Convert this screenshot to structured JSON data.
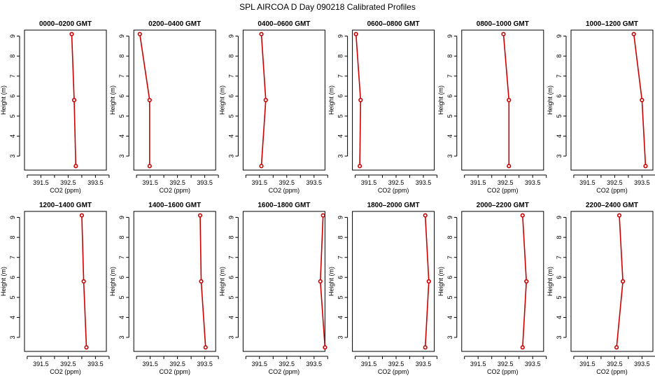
{
  "title": "SPL AIRCOA D  Day 090218  Calibrated Profiles",
  "chart_data": [
    {
      "type": "line",
      "title": "0000–0200 GMT",
      "xlabel": "CO2 (ppm)",
      "ylabel": "Height (m)",
      "xlim": [
        390.9,
        393.9
      ],
      "ylim": [
        2.3,
        9.3
      ],
      "x_ticks": [
        391.0,
        391.5,
        392.0,
        392.5,
        393.0,
        393.5,
        394.0
      ],
      "x_tick_labels": [
        "",
        "391.5",
        "",
        "392.5",
        "",
        "393.5",
        ""
      ],
      "y_ticks": [
        3,
        4,
        5,
        6,
        7,
        8,
        9
      ],
      "series": [
        {
          "x": [
            392.63,
            392.72,
            392.78
          ],
          "y": [
            9.1,
            5.8,
            2.5
          ]
        }
      ]
    },
    {
      "type": "line",
      "title": "0200–0400 GMT",
      "xlabel": "CO2 (ppm)",
      "ylabel": "Height (m)",
      "xlim": [
        390.9,
        393.9
      ],
      "ylim": [
        2.3,
        9.3
      ],
      "x_ticks": [
        391.0,
        391.5,
        392.0,
        392.5,
        393.0,
        393.5,
        394.0
      ],
      "x_tick_labels": [
        "",
        "391.5",
        "",
        "392.5",
        "",
        "393.5",
        ""
      ],
      "y_ticks": [
        3,
        4,
        5,
        6,
        7,
        8,
        9
      ],
      "series": [
        {
          "x": [
            391.12,
            391.48,
            391.48
          ],
          "y": [
            9.1,
            5.8,
            2.5
          ]
        }
      ]
    },
    {
      "type": "line",
      "title": "0400–0600 GMT",
      "xlabel": "CO2 (ppm)",
      "ylabel": "Height (m)",
      "xlim": [
        390.9,
        393.9
      ],
      "ylim": [
        2.3,
        9.3
      ],
      "x_ticks": [
        391.0,
        391.5,
        392.0,
        392.5,
        393.0,
        393.5,
        394.0
      ],
      "x_tick_labels": [
        "",
        "391.5",
        "",
        "392.5",
        "",
        "393.5",
        ""
      ],
      "y_ticks": [
        3,
        4,
        5,
        6,
        7,
        8,
        9
      ],
      "series": [
        {
          "x": [
            391.57,
            391.73,
            391.57
          ],
          "y": [
            9.1,
            5.8,
            2.5
          ]
        }
      ]
    },
    {
      "type": "line",
      "title": "0600–0800 GMT",
      "xlabel": "CO2 (ppm)",
      "ylabel": "Height (m)",
      "xlim": [
        390.9,
        393.9
      ],
      "ylim": [
        2.3,
        9.3
      ],
      "x_ticks": [
        391.0,
        391.5,
        392.0,
        392.5,
        393.0,
        393.5,
        394.0
      ],
      "x_tick_labels": [
        "",
        "391.5",
        "",
        "392.5",
        "",
        "393.5",
        ""
      ],
      "y_ticks": [
        3,
        4,
        5,
        6,
        7,
        8,
        9
      ],
      "series": [
        {
          "x": [
            391.03,
            391.2,
            391.17
          ],
          "y": [
            9.1,
            5.8,
            2.5
          ]
        }
      ]
    },
    {
      "type": "line",
      "title": "0800–1000 GMT",
      "xlabel": "CO2 (ppm)",
      "ylabel": "Height (m)",
      "xlim": [
        390.9,
        393.9
      ],
      "ylim": [
        2.3,
        9.3
      ],
      "x_ticks": [
        391.0,
        391.5,
        392.0,
        392.5,
        393.0,
        393.5,
        394.0
      ],
      "x_tick_labels": [
        "",
        "391.5",
        "",
        "392.5",
        "",
        "393.5",
        ""
      ],
      "y_ticks": [
        3,
        4,
        5,
        6,
        7,
        8,
        9
      ],
      "series": [
        {
          "x": [
            392.43,
            392.63,
            392.63
          ],
          "y": [
            9.1,
            5.8,
            2.5
          ]
        }
      ]
    },
    {
      "type": "line",
      "title": "1000–1200 GMT",
      "xlabel": "CO2 (ppm)",
      "ylabel": "Height (m)",
      "xlim": [
        390.9,
        393.9
      ],
      "ylim": [
        2.3,
        9.3
      ],
      "x_ticks": [
        391.0,
        391.5,
        392.0,
        392.5,
        393.0,
        393.5,
        394.0
      ],
      "x_tick_labels": [
        "",
        "391.5",
        "",
        "392.5",
        "",
        "393.5",
        ""
      ],
      "y_ticks": [
        3,
        4,
        5,
        6,
        7,
        8,
        9
      ],
      "series": [
        {
          "x": [
            393.2,
            393.5,
            393.63
          ],
          "y": [
            9.1,
            5.8,
            2.5
          ]
        }
      ]
    },
    {
      "type": "line",
      "title": "1200–1400 GMT",
      "xlabel": "CO2 (ppm)",
      "ylabel": "Height (m)",
      "xlim": [
        390.9,
        393.9
      ],
      "ylim": [
        2.3,
        9.3
      ],
      "x_ticks": [
        391.0,
        391.5,
        392.0,
        392.5,
        393.0,
        393.5,
        394.0
      ],
      "x_tick_labels": [
        "",
        "391.5",
        "",
        "392.5",
        "",
        "393.5",
        ""
      ],
      "y_ticks": [
        3,
        4,
        5,
        6,
        7,
        8,
        9
      ],
      "series": [
        {
          "x": [
            393.0,
            393.07,
            393.17
          ],
          "y": [
            9.1,
            5.8,
            2.5
          ]
        }
      ]
    },
    {
      "type": "line",
      "title": "1400–1600 GMT",
      "xlabel": "CO2 (ppm)",
      "ylabel": "Height (m)",
      "xlim": [
        390.9,
        393.9
      ],
      "ylim": [
        2.3,
        9.3
      ],
      "x_ticks": [
        391.0,
        391.5,
        392.0,
        392.5,
        393.0,
        393.5,
        394.0
      ],
      "x_tick_labels": [
        "",
        "391.5",
        "",
        "392.5",
        "",
        "393.5",
        ""
      ],
      "y_ticks": [
        3,
        4,
        5,
        6,
        7,
        8,
        9
      ],
      "series": [
        {
          "x": [
            393.33,
            393.37,
            393.53
          ],
          "y": [
            9.1,
            5.8,
            2.5
          ]
        }
      ]
    },
    {
      "type": "line",
      "title": "1600–1800 GMT",
      "xlabel": "CO2 (ppm)",
      "ylabel": "Height (m)",
      "xlim": [
        390.9,
        393.9
      ],
      "ylim": [
        2.3,
        9.3
      ],
      "x_ticks": [
        391.0,
        391.5,
        392.0,
        392.5,
        393.0,
        393.5,
        394.0
      ],
      "x_tick_labels": [
        "",
        "391.5",
        "",
        "392.5",
        "",
        "393.5",
        ""
      ],
      "y_ticks": [
        3,
        4,
        5,
        6,
        7,
        8,
        9
      ],
      "series": [
        {
          "x": [
            393.83,
            393.73,
            393.9
          ],
          "y": [
            9.1,
            5.8,
            2.5
          ]
        }
      ]
    },
    {
      "type": "line",
      "title": "1800–2000 GMT",
      "xlabel": "CO2 (ppm)",
      "ylabel": "Height (m)",
      "xlim": [
        390.9,
        393.9
      ],
      "ylim": [
        2.3,
        9.3
      ],
      "x_ticks": [
        391.0,
        391.5,
        392.0,
        392.5,
        393.0,
        393.5,
        394.0
      ],
      "x_tick_labels": [
        "",
        "391.5",
        "",
        "392.5",
        "",
        "393.5",
        ""
      ],
      "y_ticks": [
        3,
        4,
        5,
        6,
        7,
        8,
        9
      ],
      "series": [
        {
          "x": [
            393.57,
            393.7,
            393.57
          ],
          "y": [
            9.1,
            5.8,
            2.5
          ]
        }
      ]
    },
    {
      "type": "line",
      "title": "2000–2200 GMT",
      "xlabel": "CO2 (ppm)",
      "ylabel": "Height (m)",
      "xlim": [
        390.9,
        393.9
      ],
      "ylim": [
        2.3,
        9.3
      ],
      "x_ticks": [
        391.0,
        391.5,
        392.0,
        392.5,
        393.0,
        393.5,
        394.0
      ],
      "x_tick_labels": [
        "",
        "391.5",
        "",
        "392.5",
        "",
        "393.5",
        ""
      ],
      "y_ticks": [
        3,
        4,
        5,
        6,
        7,
        8,
        9
      ],
      "series": [
        {
          "x": [
            393.13,
            393.27,
            393.13
          ],
          "y": [
            9.1,
            5.8,
            2.5
          ]
        }
      ]
    },
    {
      "type": "line",
      "title": "2200–2400 GMT",
      "xlabel": "CO2 (ppm)",
      "ylabel": "Height (m)",
      "xlim": [
        390.9,
        393.9
      ],
      "ylim": [
        2.3,
        9.3
      ],
      "x_ticks": [
        391.0,
        391.5,
        392.0,
        392.5,
        393.0,
        393.5,
        394.0
      ],
      "x_tick_labels": [
        "",
        "391.5",
        "",
        "392.5",
        "",
        "393.5",
        ""
      ],
      "y_ticks": [
        3,
        4,
        5,
        6,
        7,
        8,
        9
      ],
      "series": [
        {
          "x": [
            392.67,
            392.8,
            392.57
          ],
          "y": [
            9.1,
            5.8,
            2.5
          ]
        }
      ]
    }
  ]
}
